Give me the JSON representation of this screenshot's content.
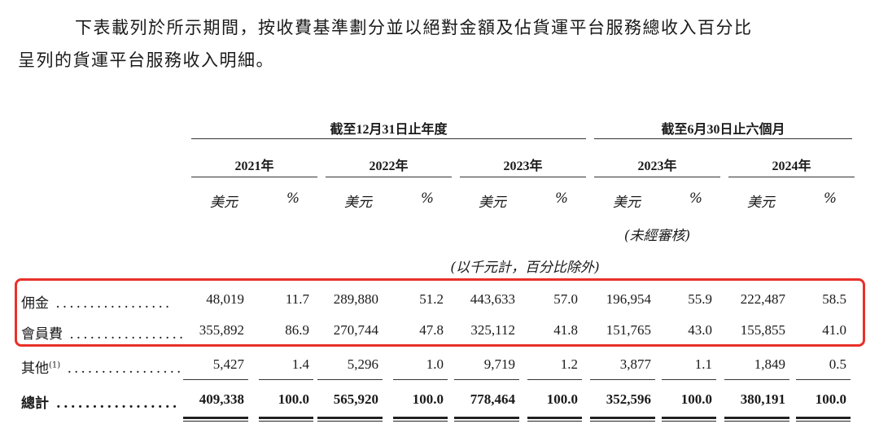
{
  "intro": {
    "line1": "下表載列於所示期間，按收費基準劃分並以絕對金額及佔貨運平台服務總收入百分比",
    "line2": "呈列的貨運平台服務收入明細。"
  },
  "table": {
    "group_headers": [
      "截至12月31日止年度",
      "截至6月30日止六個月"
    ],
    "years": [
      "2021年",
      "2022年",
      "2023年",
      "2023年",
      "2024年"
    ],
    "unit_usd": "美元",
    "unit_pct": "%",
    "unaudited": "(未經審核)",
    "unit_note": "(以千元計，百分比除外)",
    "rows": [
      {
        "label": "佣金",
        "sup": "",
        "values": [
          "48,019",
          "11.7",
          "289,880",
          "51.2",
          "443,633",
          "57.0",
          "196,954",
          "55.9",
          "222,487",
          "58.5"
        ],
        "bold": false
      },
      {
        "label": "會員費",
        "sup": "",
        "values": [
          "355,892",
          "86.9",
          "270,744",
          "47.8",
          "325,112",
          "41.8",
          "151,765",
          "43.0",
          "155,855",
          "41.0"
        ],
        "bold": false
      },
      {
        "label": "其他",
        "sup": "(1)",
        "values": [
          "5,427",
          "1.4",
          "5,296",
          "1.0",
          "9,719",
          "1.2",
          "3,877",
          "1.1",
          "1,849",
          "0.5"
        ],
        "bold": false
      },
      {
        "label": "總計",
        "sup": "",
        "values": [
          "409,338",
          "100.0",
          "565,920",
          "100.0",
          "778,464",
          "100.0",
          "352,596",
          "100.0",
          "380,191",
          "100.0"
        ],
        "bold": true
      }
    ]
  },
  "colors": {
    "highlight": "#e8312a"
  }
}
